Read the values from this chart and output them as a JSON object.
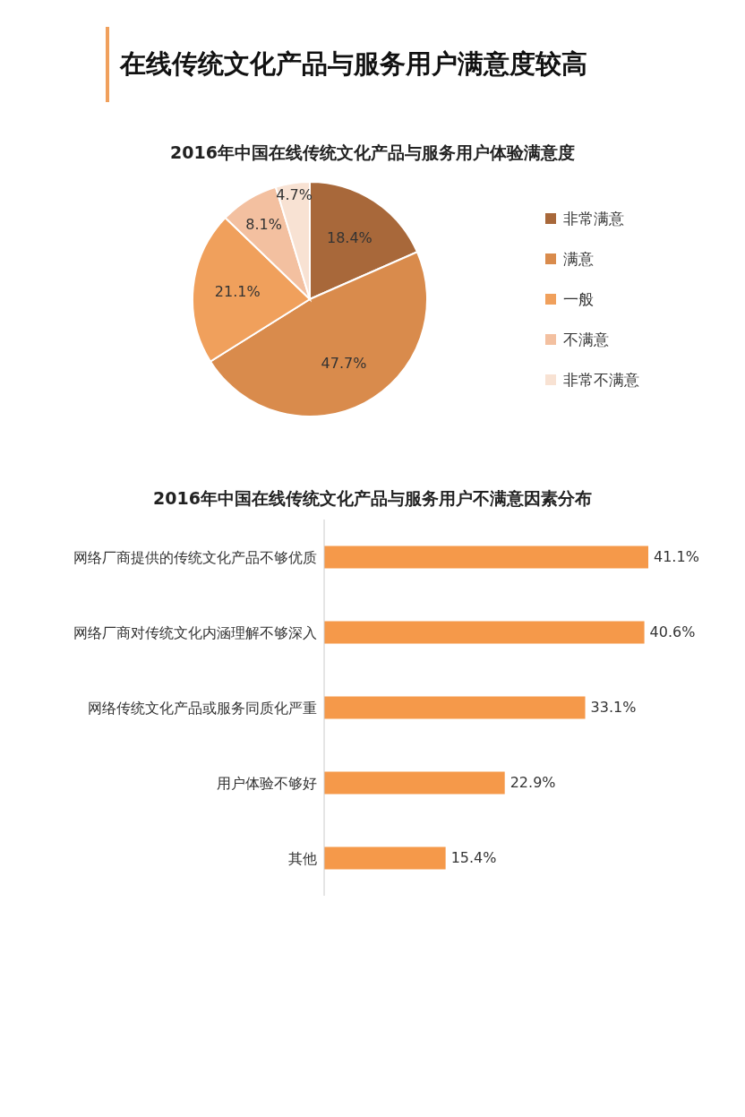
{
  "chart_data": [
    {
      "type": "pie",
      "title": "在线传统文化产品与服务用户满意度较高",
      "subtitle": "2016年中国在线传统文化产品与服务用户体验满意度",
      "categories": [
        "非常满意",
        "满意",
        "一般",
        "不满意",
        "非常不满意"
      ],
      "values": [
        18.4,
        47.7,
        21.1,
        8.1,
        4.7
      ],
      "value_labels": [
        "18.4%",
        "47.7%",
        "21.1%",
        "8.1%",
        "4.7%"
      ],
      "colors": [
        "#a8683a",
        "#d98b4c",
        "#f0a05c",
        "#f3c0a0",
        "#f8e2d3"
      ],
      "legend": "right"
    },
    {
      "type": "bar",
      "orientation": "horizontal",
      "title": "2016年中国在线传统文化产品与服务用户不满意因素分布",
      "categories": [
        "网络厂商提供的传统文化产品不够优质",
        "网络厂商对传统文化内涵理解不够深入",
        "网络传统文化产品或服务同质化严重",
        "用户体验不够好",
        "其他"
      ],
      "values": [
        41.1,
        40.6,
        33.1,
        22.9,
        15.4
      ],
      "value_labels": [
        "41.1%",
        "40.6%",
        "33.1%",
        "22.9%",
        "15.4%"
      ],
      "color": "#f5994a"
    }
  ]
}
